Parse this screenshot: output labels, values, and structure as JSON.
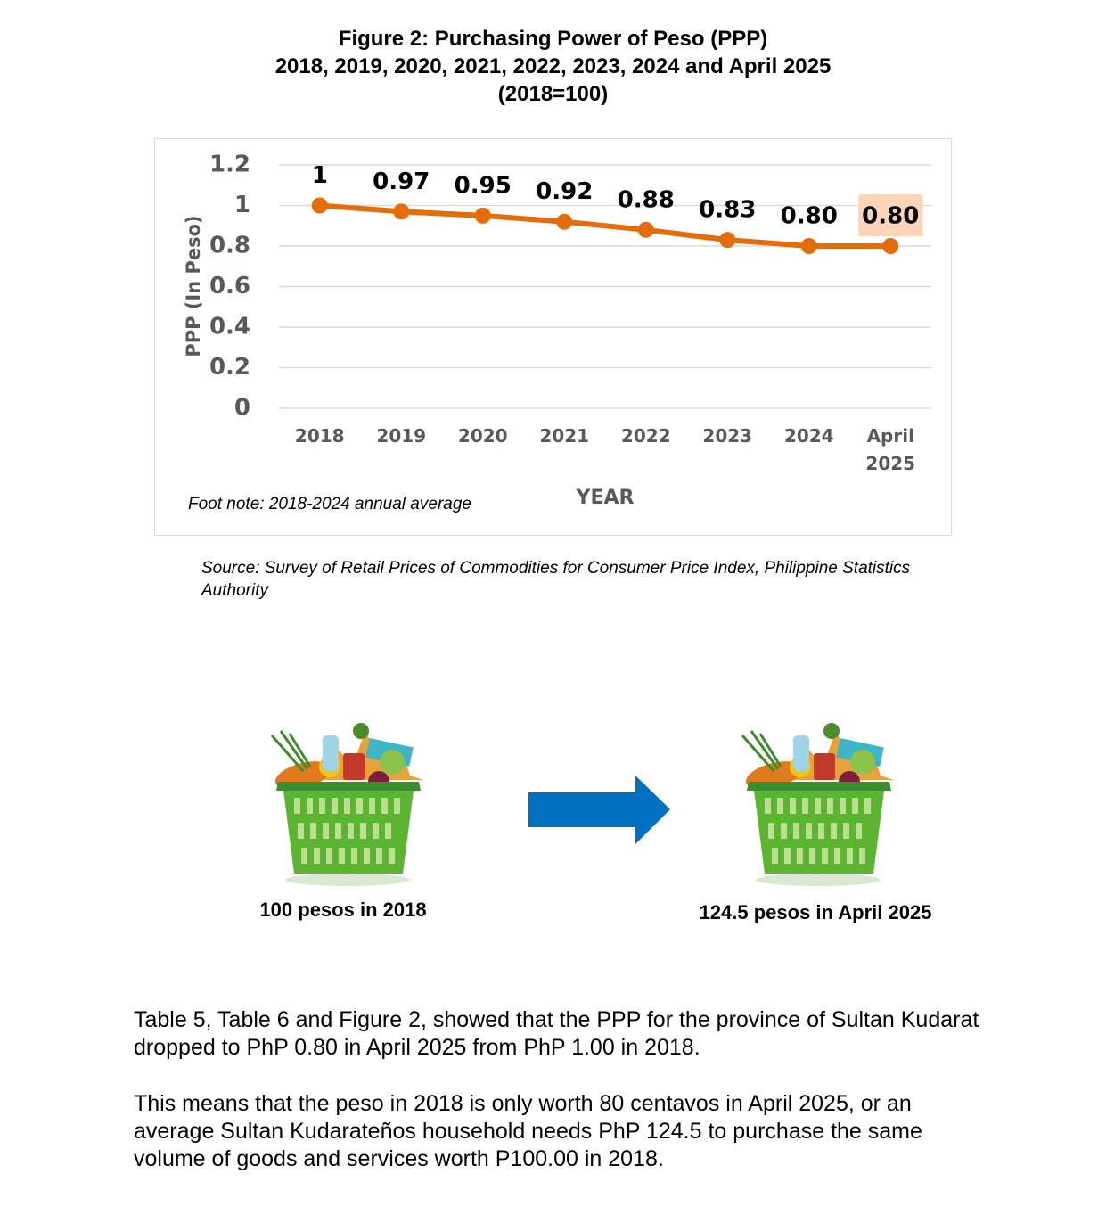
{
  "chart_data": {
    "type": "line",
    "title": "Figure 2:  Purchasing Power of Peso (PPP)",
    "subtitle": "2018, 2019, 2020, 2021, 2022, 2023, 2024 and April 2025",
    "base_note": "(2018=100)",
    "categories": [
      "2018",
      "2019",
      "2020",
      "2021",
      "2022",
      "2023",
      "2024",
      "April 2025"
    ],
    "values": [
      1,
      0.97,
      0.95,
      0.92,
      0.88,
      0.83,
      0.8,
      0.8
    ],
    "value_labels": [
      "1",
      "0.97",
      "0.95",
      "0.92",
      "0.88",
      "0.83",
      "0.80",
      "0.80"
    ],
    "label_highlight": {
      "index": 7,
      "color": "#fbd5b5"
    },
    "color": "#e46c0a",
    "ylim": [
      0,
      1.2
    ],
    "yticks": [
      0,
      0.2,
      0.4,
      0.6,
      0.8,
      1,
      1.2
    ],
    "grid": true,
    "ylabel": "PPP (In Peso)",
    "xlabel": "YEAR",
    "footnote": "Foot note: 2018-2024 annual average"
  },
  "source": "Source: Survey of Retail Prices of Commodities for Consumer Price Index, Philippine Statistics Authority",
  "illustration": {
    "left_caption": "100 pesos in 2018",
    "right_caption": "124.5 pesos in April 2025"
  },
  "paragraphs": [
    "Table 5, Table 6 and Figure 2, showed that the PPP for the province of Sultan Kudarat dropped to PhP 0.80 in April 2025 from PhP 1.00 in 2018.",
    "This means that the peso in 2018 is only worth 80 centavos in April 2025, or an average Sultan Kudarateños household needs PhP 124.5 to purchase the same volume of goods and services worth P100.00 in 2018."
  ]
}
